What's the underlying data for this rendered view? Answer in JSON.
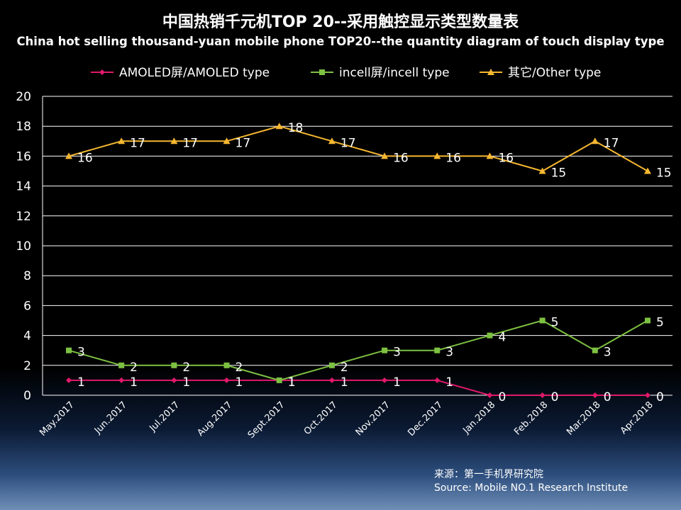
{
  "chart_data": {
    "type": "line",
    "title": "中国热销千元机TOP 20--采用触控显示类型数量表",
    "subtitle": "China hot selling thousand-yuan mobile phone TOP20--the quantity diagram of touch display type",
    "categories": [
      "May.2017",
      "Jun.2017",
      "Jul.2017",
      "Aug.2017",
      "Sept.2017",
      "Oct.2017",
      "Nov.2017",
      "Dec.2017",
      "Jan.2018",
      "Feb.2018",
      "Mar.2018",
      "Apr.2018"
    ],
    "series": [
      {
        "name": "AMOLED屏/AMOLED type",
        "color": "#e0196b",
        "marker": "diamond",
        "values": [
          1,
          1,
          1,
          1,
          1,
          1,
          1,
          1,
          0,
          0,
          0,
          0
        ]
      },
      {
        "name": "incell屏/incell type",
        "color": "#7dc142",
        "marker": "square",
        "values": [
          3,
          2,
          2,
          2,
          1,
          2,
          3,
          3,
          4,
          5,
          3,
          5
        ]
      },
      {
        "name": "其它/Other type",
        "color": "#f5b731",
        "marker": "triangle",
        "values": [
          16,
          17,
          17,
          17,
          18,
          17,
          16,
          16,
          16,
          15,
          17,
          15
        ]
      }
    ],
    "yticks": [
      "0",
      "2",
      "4",
      "6",
      "8",
      "10",
      "12",
      "14",
      "16",
      "18",
      "20"
    ],
    "ylim": [
      0,
      20
    ],
    "grid": true,
    "legend": "top"
  },
  "source": {
    "line1": "来源：第一手机界研究院",
    "line2": "Source: Mobile NO.1 Research Institute"
  }
}
